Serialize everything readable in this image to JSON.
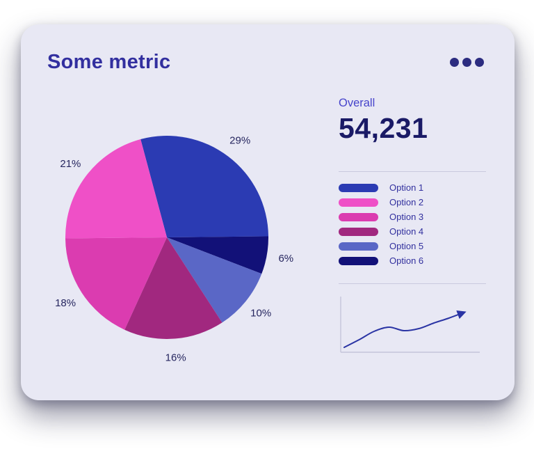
{
  "card": {
    "title": "Some metric"
  },
  "overall": {
    "label": "Overall",
    "value": "54,231"
  },
  "chart_data": [
    {
      "type": "pie",
      "title": "Some metric",
      "unit": "percent",
      "slices": [
        {
          "label": "Option 1",
          "value": 29,
          "color": "#2B3BB3"
        },
        {
          "label": "Option 2",
          "value": 21,
          "color": "#EF50C7"
        },
        {
          "label": "Option 3",
          "value": 18,
          "color": "#DB3CB0"
        },
        {
          "label": "Option 4",
          "value": 16,
          "color": "#A1287F"
        },
        {
          "label": "Option 5",
          "value": 10,
          "color": "#5A67C6"
        },
        {
          "label": "Option 6",
          "value": 6,
          "color": "#121178"
        }
      ],
      "draw_order_clockwise_from_top": [
        0,
        5,
        4,
        3,
        2,
        1
      ],
      "start_angle_deg": -15,
      "slice_labels": [
        "29%",
        "21%",
        "18%",
        "16%",
        "10%",
        "6%"
      ],
      "legend_position": "right"
    },
    {
      "type": "line",
      "title": "",
      "style": "trend-sparkline-with-arrow",
      "axes_labels_visible": false,
      "x": [
        0,
        1,
        2,
        3,
        4,
        5,
        6,
        7,
        8
      ],
      "values": [
        3,
        14,
        26,
        32,
        27,
        30,
        38,
        45,
        53
      ],
      "color": "#2A34A4"
    }
  ],
  "colors": {
    "card_background": "#E8E8F4",
    "title": "#322F9F",
    "overall_label": "#4744CB",
    "overall_value": "#1A1A66",
    "legend_text": "#32309E",
    "percent_labels": "#26265F",
    "divider": "#C9C9DE",
    "menu_dots": "#2C2C80",
    "sparkline_axis": "#C4C4DA"
  }
}
